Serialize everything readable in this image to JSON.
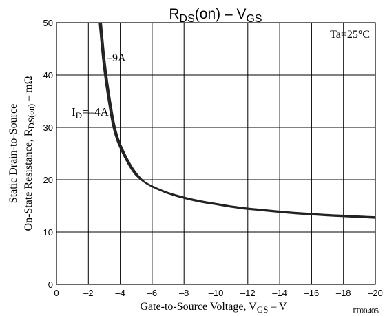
{
  "chart_data": {
    "type": "line",
    "title": {
      "base": "R",
      "sub": "DS",
      "mid": "(on)  –  V",
      "sub2": "GS"
    },
    "xlabel": {
      "pre": "Gate-to-Source Voltage, V",
      "sub": "GS",
      "post": "  –  V"
    },
    "ylabel": {
      "line1": "Static Drain-to-Source",
      "line2_pre": "On-State Resistance, R",
      "line2_sub": "DS",
      "line2_mid": "(on)",
      "line2_post": "  –  mΩ"
    },
    "annotation": "Ta=25°C",
    "figure_id": "IT00405",
    "xlim": [
      0,
      -20
    ],
    "ylim": [
      0,
      50
    ],
    "x_ticks": [
      0,
      -2,
      -4,
      -6,
      -8,
      -10,
      -12,
      -14,
      -16,
      -18,
      -20
    ],
    "x_tick_labels": [
      "0",
      "–2",
      "–4",
      "–6",
      "–8",
      "–10",
      "–12",
      "–14",
      "–16",
      "–18",
      "–20"
    ],
    "y_ticks": [
      0,
      10,
      20,
      30,
      40,
      50
    ],
    "y_tick_labels": [
      "0",
      "10",
      "20",
      "30",
      "40",
      "50"
    ],
    "grid": true,
    "series": [
      {
        "name": "I_D=–4A",
        "label_base": "I",
        "label_sub": "D",
        "label_post": "=–4A",
        "x": [
          -2.8,
          -3.0,
          -3.2,
          -3.4,
          -3.6,
          -3.8,
          -4.0,
          -4.5,
          -5.0,
          -5.5,
          -6.0,
          -7.0,
          -8.0,
          -9.0,
          -10.0,
          -11.0,
          -12.0,
          -13.0,
          -14.0,
          -15.0,
          -16.0,
          -17.0,
          -18.0,
          -19.0,
          -20.0
        ],
        "y": [
          50,
          43.5,
          38.5,
          34.5,
          31.0,
          28.5,
          26.8,
          23.6,
          21.2,
          19.6,
          18.7,
          17.4,
          16.5,
          15.8,
          15.3,
          14.8,
          14.4,
          14.1,
          13.8,
          13.55,
          13.35,
          13.15,
          13.0,
          12.85,
          12.7
        ]
      },
      {
        "name": "–9A",
        "label_base": "–9A",
        "x": [
          -2.7,
          -2.9,
          -3.1,
          -3.3,
          -3.5,
          -3.7,
          -3.9,
          -4.4,
          -4.9,
          -5.4,
          -5.9,
          -6.9,
          -7.9,
          -8.9,
          -9.9,
          -10.9,
          -11.9,
          -12.9,
          -13.9,
          -14.9,
          -15.9,
          -16.9,
          -17.9,
          -18.9,
          -20.0
        ],
        "y": [
          50,
          43.5,
          38.5,
          34.5,
          31.0,
          28.5,
          26.8,
          23.6,
          21.2,
          19.8,
          18.9,
          17.6,
          16.7,
          16.0,
          15.45,
          14.95,
          14.55,
          14.25,
          13.95,
          13.7,
          13.5,
          13.3,
          13.15,
          13.0,
          12.85
        ]
      }
    ],
    "colors": {
      "curve": "#222222",
      "grid": "#000000",
      "text": "#000000"
    }
  }
}
